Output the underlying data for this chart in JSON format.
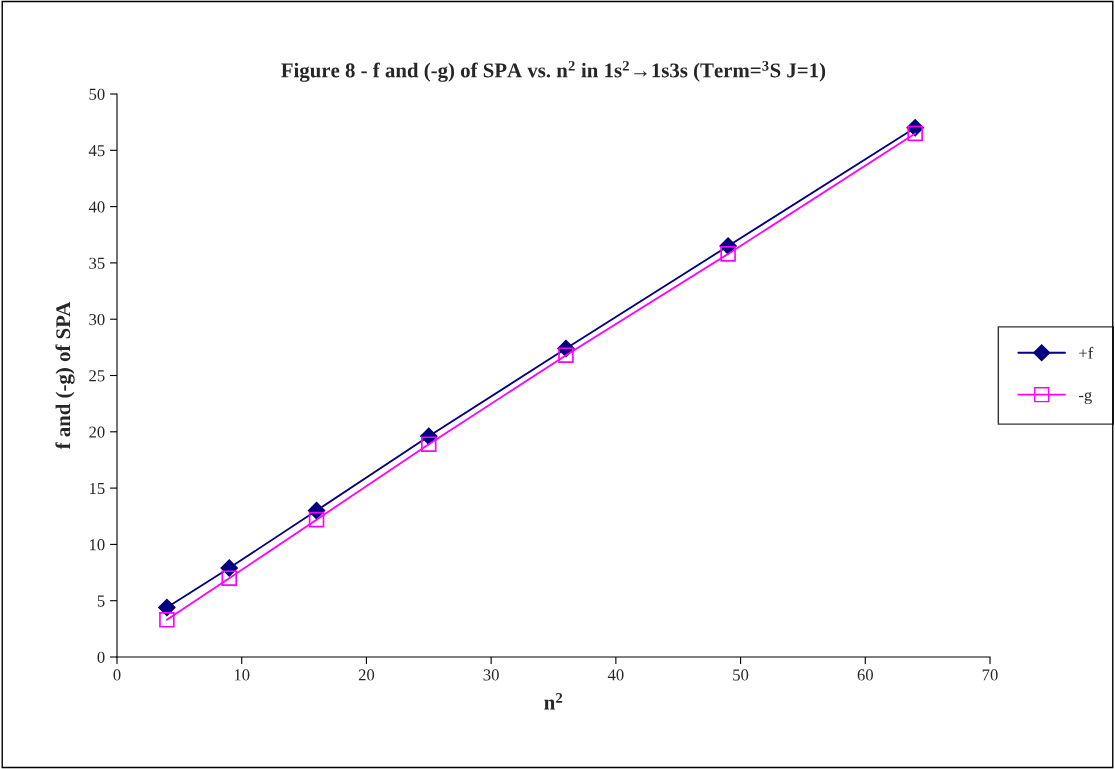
{
  "chart_data": {
    "type": "line",
    "title": "Figure 8 - f and (-g) of SPA vs. n$^{2}$ in 1s$^{2}$→1s3s (Term=$^{3}$S J=1)",
    "xlabel": "n$^{2}$",
    "ylabel": "f and (-g) of SPA",
    "x": [
      4,
      9,
      16,
      25,
      36,
      49,
      64
    ],
    "series": [
      {
        "name": "+f",
        "color": "#000080",
        "marker": "diamond",
        "values": [
          4.4,
          7.9,
          13.0,
          19.6,
          27.4,
          36.5,
          47.0
        ]
      },
      {
        "name": "-g",
        "color": "#ff00ff",
        "marker": "square",
        "values": [
          3.3,
          7.0,
          12.2,
          18.9,
          26.8,
          35.8,
          46.5
        ]
      }
    ],
    "xlim": [
      0,
      70
    ],
    "xticks": [
      0,
      10,
      20,
      30,
      40,
      50,
      60,
      70
    ],
    "ylim": [
      0,
      50
    ],
    "yticks": [
      0,
      5,
      10,
      15,
      20,
      25,
      30,
      35,
      40,
      45,
      50
    ],
    "grid": false,
    "legend": "right",
    "line_style": "solid"
  }
}
